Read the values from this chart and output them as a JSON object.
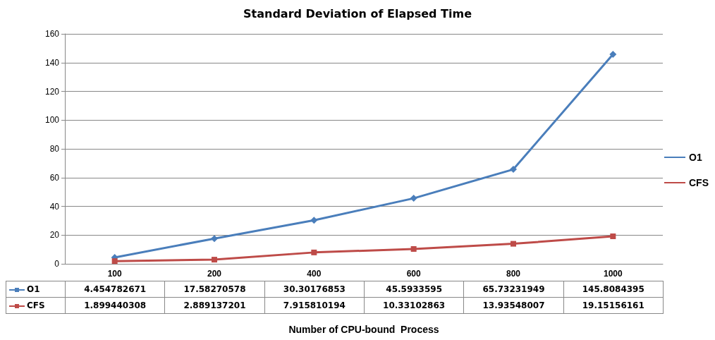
{
  "chart_data": {
    "type": "line",
    "title": "Standard Deviation of Elapsed Time",
    "xlabel": "Number of CPU-bound  Process",
    "categories": [
      "100",
      "200",
      "400",
      "600",
      "800",
      "1000"
    ],
    "series": [
      {
        "name": "O1",
        "color": "#4a7ebb",
        "marker": "diamond",
        "values": [
          4.454782671,
          17.58270578,
          30.30176853,
          45.5933595,
          65.73231949,
          145.8084395
        ]
      },
      {
        "name": "CFS",
        "color": "#be4b48",
        "marker": "square",
        "values": [
          1.899440308,
          2.889137201,
          7.915810194,
          10.33102863,
          13.93548007,
          19.15156161
        ]
      }
    ],
    "ylim": [
      0,
      160
    ],
    "yticks": [
      0,
      20,
      40,
      60,
      80,
      100,
      120,
      140,
      160
    ],
    "grid": "y",
    "legend": "right",
    "data_labels": true
  }
}
